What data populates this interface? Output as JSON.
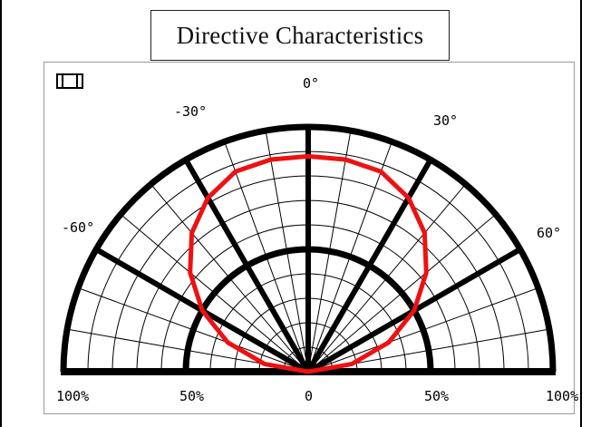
{
  "chart_data": {
    "type": "polar",
    "title": "Directive Characteristics",
    "angle_labels": [
      "-60°",
      "-30°",
      "0°",
      "30°",
      "60°"
    ],
    "radial_labels": [
      "100%",
      "50%",
      "0",
      "50%",
      "100%"
    ],
    "angle_range": [
      -90,
      90
    ],
    "radial_range": [
      0,
      100
    ],
    "grid": true,
    "series": [
      {
        "color": "#ee1111",
        "angles": [
          -90,
          -80,
          -70,
          -60,
          -50,
          -40,
          -30,
          -20,
          -10,
          0,
          10,
          20,
          30,
          40,
          50,
          60,
          70,
          80,
          90
        ],
        "values": [
          0,
          18,
          35,
          50,
          63,
          74,
          82,
          87,
          88,
          88,
          88,
          87,
          82,
          74,
          63,
          50,
          35,
          18,
          0
        ]
      }
    ]
  },
  "colors": {
    "grid": "#000000",
    "curve": "#ee1111"
  }
}
